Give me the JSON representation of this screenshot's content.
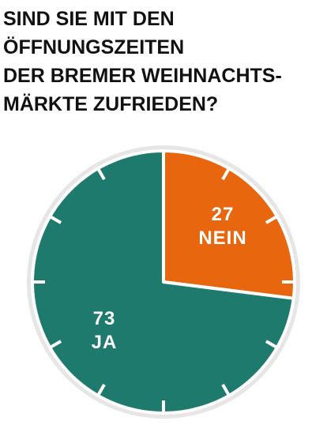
{
  "chart_data": {
    "type": "pie",
    "title": [
      "SIND SIE MIT DEN",
      "ÖFFNUNGSZEITEN",
      "DER BREMER WEIHNACHTS-",
      "MÄRKTE ZUFRIEDEN?"
    ],
    "categories": [
      "NEIN",
      "JA"
    ],
    "values": [
      27,
      73
    ],
    "colors": [
      "#e8660e",
      "#1d7a6d"
    ]
  }
}
